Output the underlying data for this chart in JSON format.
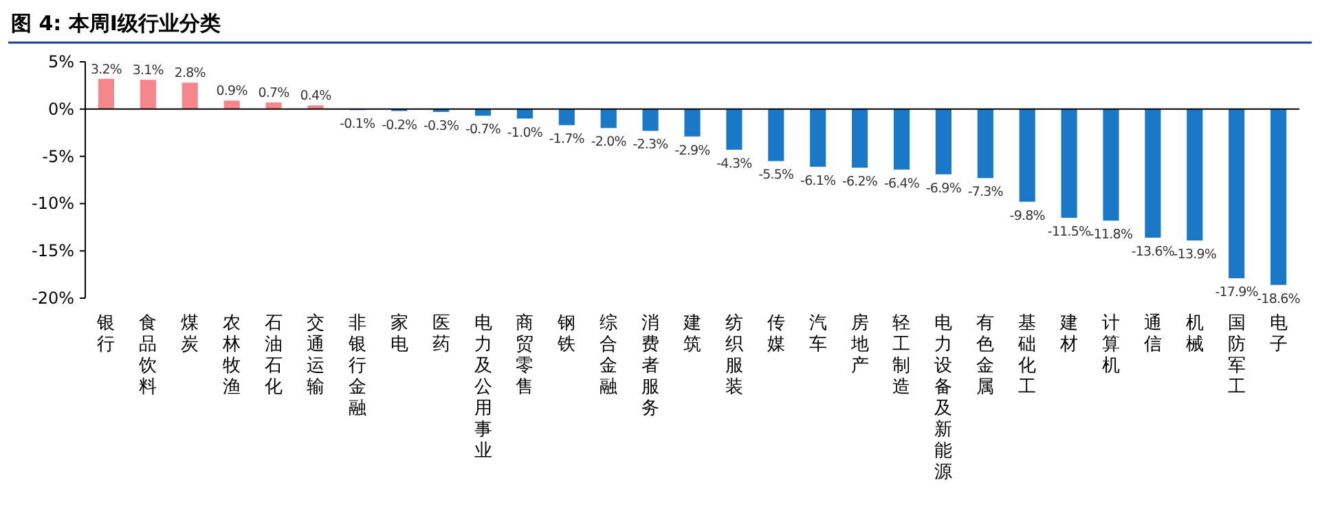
{
  "chart_data": {
    "type": "bar",
    "title": "图 4: 本周I级行业分类",
    "categories": [
      "银行",
      "食品饮料",
      "煤炭",
      "农林牧渔",
      "石油石化",
      "交通运输",
      "非银行金融",
      "家电",
      "医药",
      "电力及公用事业",
      "商贸零售",
      "钢铁",
      "综合金融",
      "消费者服务",
      "建筑",
      "纺织服装",
      "传媒",
      "汽车",
      "房地产",
      "轻工制造",
      "电力设备及新能源",
      "有色金属",
      "基础化工",
      "建材",
      "计算机",
      "通信",
      "机械",
      "国防军工",
      "电子"
    ],
    "values": [
      3.2,
      3.1,
      2.8,
      0.9,
      0.7,
      0.4,
      -0.1,
      -0.2,
      -0.3,
      -0.7,
      -1.0,
      -1.7,
      -2.0,
      -2.3,
      -2.9,
      -4.3,
      -5.5,
      -6.1,
      -6.2,
      -6.4,
      -6.9,
      -7.3,
      -9.8,
      -11.5,
      -11.8,
      -13.6,
      -13.9,
      -17.9,
      -18.6
    ],
    "value_labels": [
      "3.2%",
      "3.1%",
      "2.8%",
      "0.9%",
      "0.7%",
      "0.4%",
      "-0.1%",
      "-0.2%",
      "-0.3%",
      "-0.7%",
      "-1.0%",
      "-1.7%",
      "-2.0%",
      "-2.3%",
      "-2.9%",
      "-4.3%",
      "-5.5%",
      "-6.1%",
      "-6.2%",
      "-6.4%",
      "-6.9%",
      "-7.3%",
      "-9.8%",
      "-11.5%",
      "-11.8%",
      "-13.6%",
      "-13.9%",
      "-17.9%",
      "-18.6%"
    ],
    "colors": [
      "#f4868c",
      "#f4868c",
      "#f4868c",
      "#f4868c",
      "#f4868c",
      "#f4868c",
      "#1b78c6",
      "#1b78c6",
      "#1b78c6",
      "#1b78c6",
      "#1b78c6",
      "#1b78c6",
      "#1b78c6",
      "#1b78c6",
      "#1b78c6",
      "#1b78c6",
      "#1b78c6",
      "#1b78c6",
      "#1b78c6",
      "#1b78c6",
      "#1b78c6",
      "#1b78c6",
      "#1b78c6",
      "#1b78c6",
      "#1b78c6",
      "#1b78c6",
      "#1b78c6",
      "#1b78c6",
      "#1b78c6"
    ],
    "ylim": [
      -20,
      5
    ],
    "yticks": [
      {
        "value": 5,
        "label": "5%"
      },
      {
        "value": 0,
        "label": "0%"
      },
      {
        "value": -5,
        "label": "-5%"
      },
      {
        "value": -10,
        "label": "-10%"
      },
      {
        "value": -15,
        "label": "-15%"
      },
      {
        "value": -20,
        "label": "-20%"
      }
    ]
  }
}
